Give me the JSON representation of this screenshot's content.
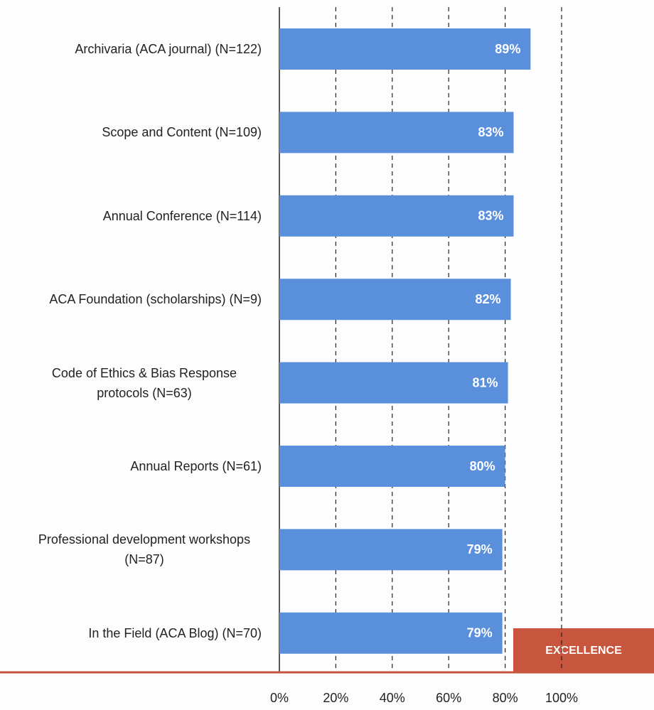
{
  "chart_data": {
    "type": "bar",
    "orientation": "horizontal",
    "categories": [
      "Archivaria (ACA journal) (N=122)",
      "Scope and Content (N=109)",
      "Annual Conference (N=114)",
      "ACA Foundation (scholarships) (N=9)",
      "Code of Ethics & Bias Response protocols (N=63)",
      "Annual Reports (N=61)",
      "Professional development workshops (N=87)",
      "In the Field (ACA Blog) (N=70)"
    ],
    "values": [
      89,
      83,
      83,
      82,
      81,
      80,
      79,
      79
    ],
    "value_labels": [
      "89%",
      "83%",
      "83%",
      "82%",
      "81%",
      "80%",
      "79%",
      "79%"
    ],
    "color": "#5a8fdb",
    "xlim": [
      0,
      100
    ],
    "xticks": [
      {
        "value": 0,
        "label": "0%"
      },
      {
        "value": 20,
        "label": "20%"
      },
      {
        "value": 40,
        "label": "40%"
      },
      {
        "value": 60,
        "label": "60%"
      },
      {
        "value": 80,
        "label": "80%"
      },
      {
        "value": 100,
        "label": "100%"
      }
    ],
    "grid": true,
    "annotation": "EXCELLENCE"
  }
}
